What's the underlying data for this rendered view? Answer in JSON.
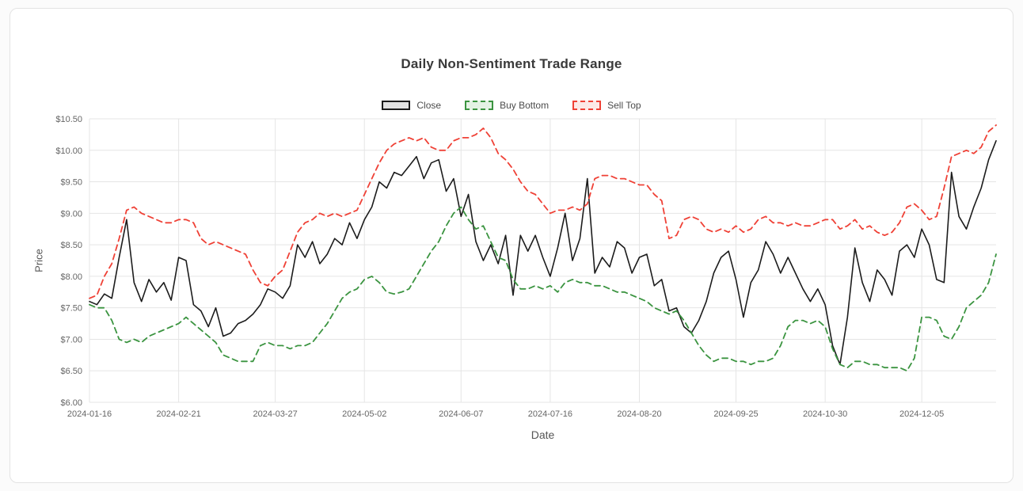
{
  "chart_data": {
    "type": "line",
    "title": "Daily Non-Sentiment Trade Range",
    "xlabel": "Date",
    "ylabel": "Price",
    "ylim": [
      6.0,
      10.5
    ],
    "grid": true,
    "legend_position": "top",
    "y_tick_values": [
      10.5,
      10.0,
      9.5,
      9.0,
      8.5,
      8.0,
      7.5,
      7.0,
      6.5,
      6.0
    ],
    "y_tick_labels": [
      "$10.50",
      "$10.00",
      "$9.50",
      "$9.00",
      "$8.50",
      "$8.00",
      "$7.50",
      "$7.00",
      "$6.50",
      "$6.00"
    ],
    "x_tick_labels": [
      "2024-01-16",
      "2024-02-21",
      "2024-03-27",
      "2024-05-02",
      "2024-06-07",
      "2024-07-16",
      "2024-08-20",
      "2024-09-25",
      "2024-10-30",
      "2024-12-05"
    ],
    "x_tick_indices": [
      0,
      12,
      25,
      37,
      50,
      62,
      74,
      87,
      99,
      112
    ],
    "series": [
      {
        "name": "Close",
        "color": "#1c1c1c",
        "dash": null,
        "legend_fill": "#e2e2e2",
        "values": [
          7.6,
          7.55,
          7.72,
          7.65,
          8.3,
          8.9,
          7.9,
          7.6,
          7.95,
          7.75,
          7.9,
          7.62,
          8.3,
          8.25,
          7.55,
          7.45,
          7.2,
          7.5,
          7.05,
          7.1,
          7.25,
          7.3,
          7.4,
          7.55,
          7.8,
          7.75,
          7.65,
          7.85,
          8.5,
          8.3,
          8.55,
          8.2,
          8.35,
          8.6,
          8.5,
          8.85,
          8.6,
          8.9,
          9.1,
          9.5,
          9.4,
          9.65,
          9.6,
          9.75,
          9.9,
          9.55,
          9.8,
          9.85,
          9.35,
          9.55,
          8.95,
          9.3,
          8.55,
          8.25,
          8.5,
          8.2,
          8.65,
          7.7,
          8.65,
          8.4,
          8.65,
          8.3,
          8.0,
          8.45,
          9.0,
          8.25,
          8.6,
          9.55,
          8.05,
          8.3,
          8.15,
          8.55,
          8.45,
          8.05,
          8.3,
          8.35,
          7.85,
          7.95,
          7.45,
          7.5,
          7.2,
          7.1,
          7.3,
          7.6,
          8.05,
          8.3,
          8.4,
          7.95,
          7.35,
          7.9,
          8.1,
          8.55,
          8.35,
          8.05,
          8.3,
          8.05,
          7.8,
          7.6,
          7.8,
          7.55,
          6.9,
          6.6,
          7.35,
          8.45,
          7.9,
          7.6,
          8.1,
          7.95,
          7.7,
          8.4,
          8.5,
          8.3,
          8.75,
          8.5,
          7.95,
          7.9,
          9.65,
          8.95,
          8.75,
          9.1,
          9.4,
          9.85,
          10.15
        ]
      },
      {
        "name": "Buy Bottom",
        "color": "#3b9440",
        "dash": [
          7,
          5
        ],
        "legend_fill": "#e4f2e4",
        "values": [
          7.55,
          7.5,
          7.5,
          7.3,
          7.0,
          6.95,
          7.0,
          6.95,
          7.05,
          7.1,
          7.15,
          7.2,
          7.25,
          7.35,
          7.25,
          7.15,
          7.05,
          6.95,
          6.75,
          6.7,
          6.65,
          6.65,
          6.65,
          6.9,
          6.95,
          6.9,
          6.9,
          6.85,
          6.9,
          6.9,
          6.95,
          7.1,
          7.25,
          7.45,
          7.65,
          7.75,
          7.8,
          7.95,
          8.0,
          7.9,
          7.75,
          7.72,
          7.75,
          7.8,
          8.0,
          8.2,
          8.4,
          8.55,
          8.8,
          9.0,
          9.1,
          8.9,
          8.75,
          8.8,
          8.55,
          8.3,
          8.25,
          7.95,
          7.8,
          7.8,
          7.85,
          7.8,
          7.85,
          7.75,
          7.9,
          7.95,
          7.9,
          7.9,
          7.85,
          7.85,
          7.8,
          7.75,
          7.75,
          7.7,
          7.65,
          7.6,
          7.5,
          7.45,
          7.4,
          7.45,
          7.3,
          7.1,
          6.9,
          6.75,
          6.65,
          6.7,
          6.7,
          6.65,
          6.65,
          6.6,
          6.65,
          6.65,
          6.7,
          6.9,
          7.2,
          7.3,
          7.3,
          7.25,
          7.3,
          7.2,
          6.85,
          6.6,
          6.55,
          6.65,
          6.65,
          6.6,
          6.6,
          6.55,
          6.55,
          6.55,
          6.5,
          6.7,
          7.35,
          7.35,
          7.3,
          7.05,
          7.0,
          7.2,
          7.5,
          7.6,
          7.7,
          7.9,
          8.35
        ]
      },
      {
        "name": "Sell Top",
        "color": "#ef4136",
        "dash": [
          7,
          5
        ],
        "legend_fill": "#fce9e7",
        "values": [
          7.65,
          7.7,
          8.0,
          8.2,
          8.6,
          9.05,
          9.1,
          9.0,
          8.95,
          8.9,
          8.85,
          8.85,
          8.9,
          8.9,
          8.85,
          8.6,
          8.5,
          8.55,
          8.5,
          8.45,
          8.4,
          8.35,
          8.1,
          7.9,
          7.85,
          8.0,
          8.1,
          8.4,
          8.7,
          8.85,
          8.9,
          9.0,
          8.95,
          9.0,
          8.95,
          9.0,
          9.05,
          9.3,
          9.55,
          9.8,
          10.0,
          10.1,
          10.15,
          10.2,
          10.15,
          10.2,
          10.05,
          10.0,
          10.0,
          10.15,
          10.2,
          10.2,
          10.25,
          10.35,
          10.2,
          9.95,
          9.85,
          9.7,
          9.5,
          9.35,
          9.3,
          9.15,
          9.0,
          9.05,
          9.05,
          9.1,
          9.05,
          9.15,
          9.55,
          9.6,
          9.6,
          9.55,
          9.55,
          9.5,
          9.45,
          9.45,
          9.3,
          9.2,
          8.6,
          8.65,
          8.9,
          8.95,
          8.9,
          8.75,
          8.7,
          8.75,
          8.7,
          8.8,
          8.7,
          8.75,
          8.9,
          8.95,
          8.85,
          8.85,
          8.8,
          8.85,
          8.8,
          8.8,
          8.85,
          8.9,
          8.9,
          8.75,
          8.8,
          8.9,
          8.75,
          8.8,
          8.7,
          8.65,
          8.7,
          8.85,
          9.1,
          9.15,
          9.05,
          8.9,
          8.95,
          9.4,
          9.9,
          9.95,
          10.0,
          9.95,
          10.05,
          10.3,
          10.4
        ]
      }
    ]
  },
  "style_colors": {
    "grid": "#e5e5e5",
    "tick_text": "#666666",
    "axis_title_text": "#555555",
    "title_text": "#3a3a3a"
  }
}
